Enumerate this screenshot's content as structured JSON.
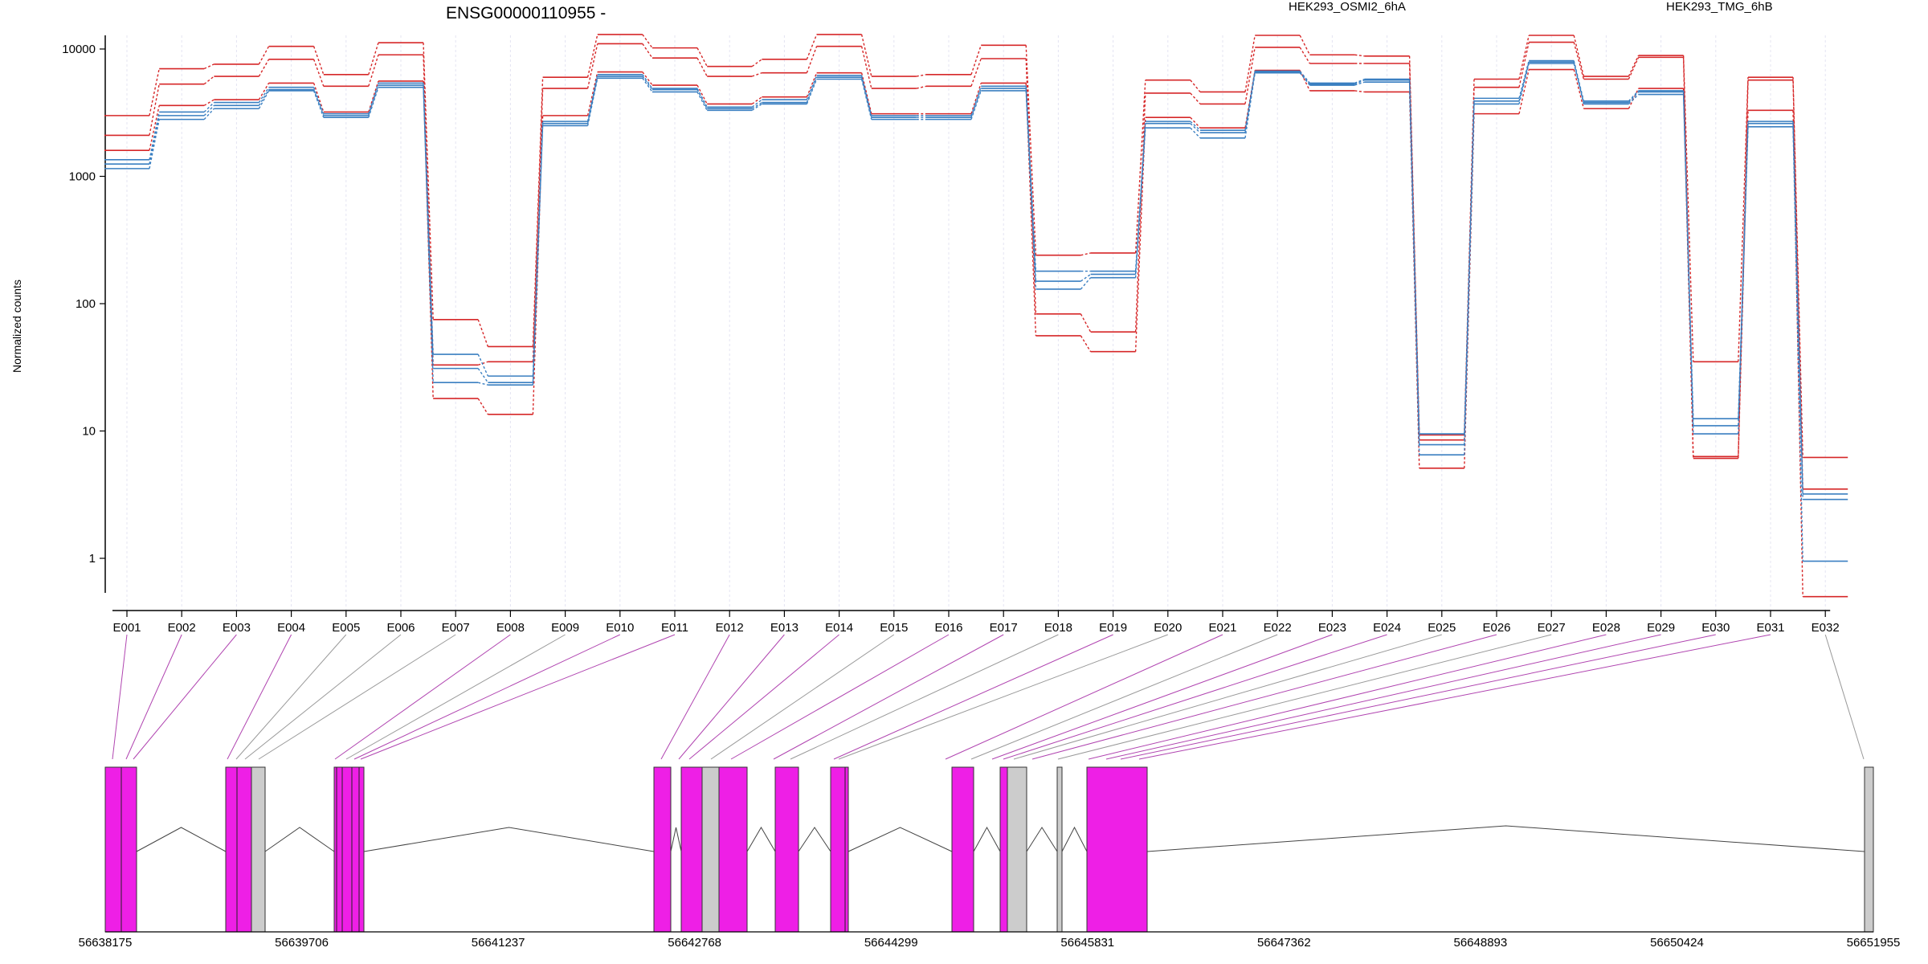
{
  "chart_data": {
    "type": "line",
    "title": "ENSG00000110955 -",
    "xlabel": "",
    "ylabel": "Normalized counts",
    "y_scale": "log",
    "ylim": [
      0.45,
      20000
    ],
    "y_ticks": [
      1,
      10,
      100,
      1000,
      10000
    ],
    "y_tick_labels": [
      "1",
      "10",
      "100",
      "1000",
      "10000"
    ],
    "grid": "vertical dotted lines at each exon",
    "legend": [
      {
        "name": "HEK293_OSMI2_6hA",
        "color": "#d62728"
      },
      {
        "name": "HEK293_TMG_6hB",
        "color": "#3a7fc1"
      }
    ],
    "categories": [
      "E001",
      "E002",
      "E003",
      "E004",
      "E005",
      "E006",
      "E007",
      "E008",
      "E009",
      "E010",
      "E011",
      "E012",
      "E013",
      "E014",
      "E015",
      "E016",
      "E017",
      "E018",
      "E019",
      "E020",
      "E021",
      "E022",
      "E023",
      "E024",
      "E025",
      "E026",
      "E027",
      "E028",
      "E029",
      "E030",
      "E031",
      "E032"
    ],
    "series": [
      {
        "group": "HEK293_OSMI2_6hA",
        "color": "#d62728",
        "values": [
          3000,
          7000,
          7600,
          10500,
          6300,
          11200,
          75,
          46,
          6000,
          13000,
          10200,
          7300,
          8300,
          13000,
          6100,
          6300,
          10700,
          240,
          250,
          5700,
          4600,
          12800,
          9000,
          8800,
          9.3,
          5800,
          12800,
          6100,
          8900,
          35,
          6000,
          6.2
        ]
      },
      {
        "group": "HEK293_OSMI2_6hA",
        "color": "#d62728",
        "values": [
          2100,
          5300,
          6100,
          8300,
          5100,
          9000,
          33,
          35,
          4900,
          11000,
          8500,
          6100,
          6500,
          10500,
          4900,
          5100,
          8400,
          83,
          60,
          4500,
          3700,
          10300,
          7700,
          7700,
          8.5,
          5000,
          11300,
          5800,
          8600,
          6.3,
          5700,
          3.5
        ]
      },
      {
        "group": "HEK293_OSMI2_6hA",
        "color": "#d62728",
        "values": [
          1600,
          3600,
          4000,
          5400,
          3200,
          5600,
          18,
          13.5,
          3000,
          6600,
          5200,
          3700,
          4200,
          6500,
          3100,
          3100,
          5400,
          56,
          42,
          2900,
          2400,
          6800,
          4700,
          4600,
          5.1,
          3100,
          6900,
          3400,
          4900,
          6.1,
          3300,
          0.5
        ]
      },
      {
        "group": "HEK293_TMG_6hB",
        "color": "#3a7fc1",
        "values": [
          1350,
          3200,
          3800,
          5000,
          3100,
          5400,
          40,
          27,
          2700,
          6300,
          4900,
          3500,
          4000,
          6200,
          3000,
          3000,
          5100,
          180,
          180,
          2700,
          2300,
          6700,
          5400,
          5800,
          9.5,
          4100,
          8100,
          3900,
          4700,
          12.5,
          2700,
          3.2
        ]
      },
      {
        "group": "HEK293_TMG_6hB",
        "color": "#3a7fc1",
        "values": [
          1250,
          3000,
          3600,
          4800,
          3000,
          5200,
          31,
          24,
          2600,
          6100,
          4800,
          3400,
          3800,
          6000,
          2900,
          2900,
          4900,
          150,
          170,
          2600,
          2200,
          6600,
          5300,
          5700,
          7.8,
          3900,
          7900,
          3800,
          4600,
          11,
          2600,
          2.9
        ]
      },
      {
        "group": "HEK293_TMG_6hB",
        "color": "#3a7fc1",
        "values": [
          1150,
          2800,
          3400,
          4700,
          2900,
          5000,
          24,
          23,
          2500,
          5900,
          4600,
          3300,
          3700,
          5800,
          2800,
          2800,
          4700,
          130,
          160,
          2400,
          2000,
          6500,
          5200,
          5500,
          6.5,
          3700,
          7700,
          3700,
          4400,
          9.5,
          2450,
          0.95
        ]
      }
    ],
    "gene_model": {
      "coordinate_labels": [
        "56638175",
        "56639706",
        "56641237",
        "56642768",
        "56644299",
        "56645831",
        "56647362",
        "56648893",
        "56650424",
        "56651955"
      ]
    }
  }
}
